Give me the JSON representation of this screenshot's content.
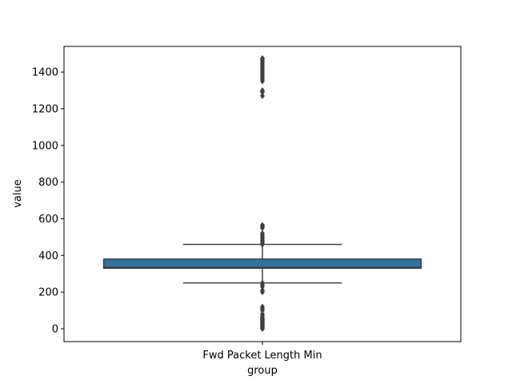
{
  "chart_data": {
    "type": "box",
    "xlabel": "group",
    "ylabel": "value",
    "categories": [
      "Fwd Packet Length Min"
    ],
    "ylim": [
      -70,
      1540
    ],
    "yticks": [
      0,
      200,
      400,
      600,
      800,
      1000,
      1200,
      1400
    ],
    "grid": false,
    "box_color": "#3274a1",
    "line_color": "#3f3f3f",
    "boxes": [
      {
        "category": "Fwd Packet Length Min",
        "whisker_low": 250,
        "q1": 330,
        "median": 335,
        "q3": 380,
        "whisker_high": 460,
        "outliers": [
          0,
          5,
          10,
          15,
          20,
          25,
          30,
          35,
          40,
          45,
          50,
          55,
          60,
          70,
          80,
          100,
          110,
          120,
          200,
          210,
          230,
          240,
          250,
          460,
          470,
          480,
          490,
          500,
          510,
          520,
          550,
          560,
          565,
          1270,
          1290,
          1300,
          1350,
          1360,
          1370,
          1380,
          1390,
          1400,
          1410,
          1420,
          1430,
          1440,
          1450,
          1460,
          1470,
          1475
        ]
      }
    ]
  }
}
